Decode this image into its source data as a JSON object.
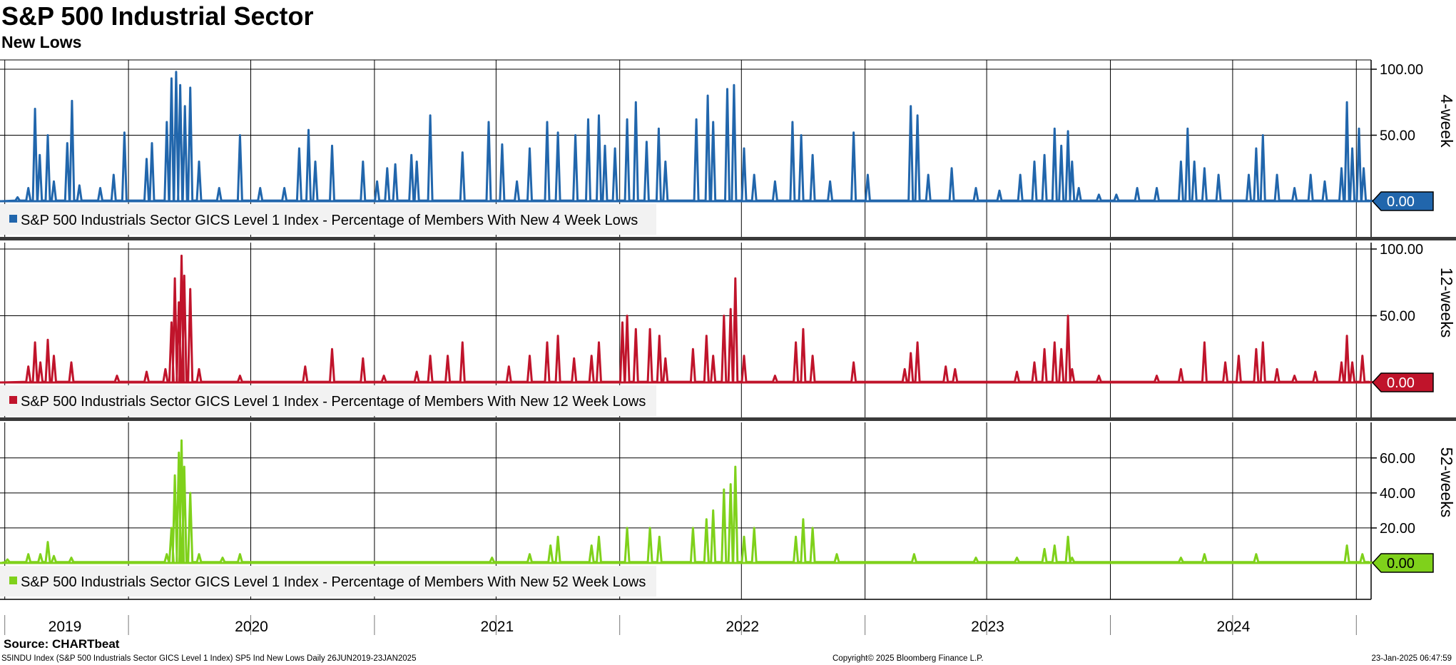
{
  "header": {
    "title": "S&P 500 Industrial Sector",
    "subtitle": "New Lows"
  },
  "footer": {
    "source": "Source: CHARTbeat",
    "description": "S5INDU Index (S&P 500 Industrials Sector GICS Level 1 Index) SP5 Ind New Lows  Daily 26JUN2019-23JAN2025",
    "copyright": "Copyright© 2025 Bloomberg Finance L.P.",
    "timestamp": "23-Jan-2025 06:47:59"
  },
  "chart_data": {
    "type": "line",
    "x_start": "2019-06-26",
    "x_end": "2025-01-23",
    "x_tick_labels": [
      "2019",
      "2020",
      "2021",
      "2022",
      "2023",
      "2024"
    ],
    "panels": [
      {
        "key": "4w",
        "side_label": "4-week",
        "legend": "S&P 500 Industrials Sector GICS Level 1 Index - Percentage of Members With New 4 Week Lows",
        "color": "#2166ac",
        "ylim": [
          0,
          100
        ],
        "yticks": [
          0,
          50,
          100
        ],
        "ytick_labels": [
          "0.00",
          "50.00",
          "100.00"
        ],
        "last_value": "0.00",
        "peaks": [
          [
            "2019-07-20",
            3
          ],
          [
            "2019-08-05",
            10
          ],
          [
            "2019-08-15",
            70
          ],
          [
            "2019-08-22",
            35
          ],
          [
            "2019-09-03",
            50
          ],
          [
            "2019-09-12",
            15
          ],
          [
            "2019-10-02",
            44
          ],
          [
            "2019-10-09",
            76
          ],
          [
            "2019-10-20",
            12
          ],
          [
            "2019-11-20",
            10
          ],
          [
            "2019-12-10",
            20
          ],
          [
            "2019-12-26",
            52
          ],
          [
            "2020-01-28",
            32
          ],
          [
            "2020-02-05",
            44
          ],
          [
            "2020-02-27",
            60
          ],
          [
            "2020-03-05",
            93
          ],
          [
            "2020-03-12",
            98
          ],
          [
            "2020-03-18",
            88
          ],
          [
            "2020-03-25",
            72
          ],
          [
            "2020-04-02",
            86
          ],
          [
            "2020-04-15",
            30
          ],
          [
            "2020-05-15",
            10
          ],
          [
            "2020-06-15",
            50
          ],
          [
            "2020-07-15",
            10
          ],
          [
            "2020-08-20",
            10
          ],
          [
            "2020-09-11",
            40
          ],
          [
            "2020-09-25",
            54
          ],
          [
            "2020-10-05",
            30
          ],
          [
            "2020-10-30",
            42
          ],
          [
            "2020-12-15",
            30
          ],
          [
            "2021-01-05",
            15
          ],
          [
            "2021-01-20",
            25
          ],
          [
            "2021-02-01",
            28
          ],
          [
            "2021-02-25",
            35
          ],
          [
            "2021-03-05",
            30
          ],
          [
            "2021-03-25",
            65
          ],
          [
            "2021-05-12",
            37
          ],
          [
            "2021-06-20",
            60
          ],
          [
            "2021-07-10",
            43
          ],
          [
            "2021-08-01",
            15
          ],
          [
            "2021-08-20",
            40
          ],
          [
            "2021-09-15",
            60
          ],
          [
            "2021-10-01",
            52
          ],
          [
            "2021-10-27",
            50
          ],
          [
            "2021-11-15",
            62
          ],
          [
            "2021-12-01",
            65
          ],
          [
            "2021-12-10",
            42
          ],
          [
            "2021-12-25",
            40
          ],
          [
            "2022-01-12",
            62
          ],
          [
            "2022-01-25",
            75
          ],
          [
            "2022-02-10",
            45
          ],
          [
            "2022-02-28",
            55
          ],
          [
            "2022-03-10",
            30
          ],
          [
            "2022-04-25",
            62
          ],
          [
            "2022-05-12",
            80
          ],
          [
            "2022-05-20",
            60
          ],
          [
            "2022-06-10",
            85
          ],
          [
            "2022-06-20",
            88
          ],
          [
            "2022-07-05",
            40
          ],
          [
            "2022-07-20",
            20
          ],
          [
            "2022-08-20",
            15
          ],
          [
            "2022-09-15",
            60
          ],
          [
            "2022-09-28",
            50
          ],
          [
            "2022-10-15",
            35
          ],
          [
            "2022-11-10",
            15
          ],
          [
            "2022-12-15",
            52
          ],
          [
            "2023-01-05",
            20
          ],
          [
            "2023-03-10",
            72
          ],
          [
            "2023-03-20",
            65
          ],
          [
            "2023-04-05",
            20
          ],
          [
            "2023-05-10",
            25
          ],
          [
            "2023-06-15",
            10
          ],
          [
            "2023-07-20",
            8
          ],
          [
            "2023-08-20",
            20
          ],
          [
            "2023-09-10",
            30
          ],
          [
            "2023-09-25",
            35
          ],
          [
            "2023-10-10",
            55
          ],
          [
            "2023-10-20",
            42
          ],
          [
            "2023-10-30",
            53
          ],
          [
            "2023-11-05",
            30
          ],
          [
            "2023-11-15",
            10
          ],
          [
            "2023-12-15",
            5
          ],
          [
            "2024-01-10",
            5
          ],
          [
            "2024-02-10",
            10
          ],
          [
            "2024-03-10",
            10
          ],
          [
            "2024-04-15",
            30
          ],
          [
            "2024-04-25",
            55
          ],
          [
            "2024-05-05",
            30
          ],
          [
            "2024-05-20",
            25
          ],
          [
            "2024-06-10",
            20
          ],
          [
            "2024-07-25",
            20
          ],
          [
            "2024-08-05",
            40
          ],
          [
            "2024-08-15",
            50
          ],
          [
            "2024-09-05",
            20
          ],
          [
            "2024-10-01",
            10
          ],
          [
            "2024-10-25",
            20
          ],
          [
            "2024-11-15",
            15
          ],
          [
            "2024-12-10",
            25
          ],
          [
            "2024-12-18",
            75
          ],
          [
            "2024-12-26",
            40
          ],
          [
            "2025-01-05",
            55
          ],
          [
            "2025-01-12",
            25
          ],
          [
            "2025-01-23",
            0
          ]
        ]
      },
      {
        "key": "12w",
        "side_label": "12-weeks",
        "legend": "S&P 500 Industrials Sector GICS Level 1 Index - Percentage of Members With New 12 Week Lows",
        "color": "#c0142b",
        "ylim": [
          0,
          100
        ],
        "yticks": [
          0,
          50,
          100
        ],
        "ytick_labels": [
          "0.00",
          "50.00",
          "100.00"
        ],
        "last_value": "0.00",
        "peaks": [
          [
            "2019-08-05",
            12
          ],
          [
            "2019-08-15",
            30
          ],
          [
            "2019-08-23",
            15
          ],
          [
            "2019-09-03",
            32
          ],
          [
            "2019-09-12",
            20
          ],
          [
            "2019-10-08",
            15
          ],
          [
            "2019-12-15",
            5
          ],
          [
            "2020-01-28",
            8
          ],
          [
            "2020-02-25",
            10
          ],
          [
            "2020-03-05",
            45
          ],
          [
            "2020-03-10",
            78
          ],
          [
            "2020-03-16",
            60
          ],
          [
            "2020-03-20",
            95
          ],
          [
            "2020-03-24",
            80
          ],
          [
            "2020-04-02",
            70
          ],
          [
            "2020-04-15",
            10
          ],
          [
            "2020-06-15",
            5
          ],
          [
            "2020-09-20",
            12
          ],
          [
            "2020-10-30",
            25
          ],
          [
            "2020-12-15",
            18
          ],
          [
            "2021-01-15",
            5
          ],
          [
            "2021-03-05",
            8
          ],
          [
            "2021-03-25",
            20
          ],
          [
            "2021-04-20",
            20
          ],
          [
            "2021-05-12",
            30
          ],
          [
            "2021-07-20",
            12
          ],
          [
            "2021-08-20",
            20
          ],
          [
            "2021-09-15",
            30
          ],
          [
            "2021-10-01",
            35
          ],
          [
            "2021-10-25",
            18
          ],
          [
            "2021-11-20",
            20
          ],
          [
            "2021-12-01",
            30
          ],
          [
            "2022-01-05",
            45
          ],
          [
            "2022-01-12",
            50
          ],
          [
            "2022-01-25",
            40
          ],
          [
            "2022-02-15",
            40
          ],
          [
            "2022-03-01",
            35
          ],
          [
            "2022-03-10",
            18
          ],
          [
            "2022-04-20",
            25
          ],
          [
            "2022-05-10",
            35
          ],
          [
            "2022-05-20",
            20
          ],
          [
            "2022-06-05",
            50
          ],
          [
            "2022-06-15",
            55
          ],
          [
            "2022-06-22",
            78
          ],
          [
            "2022-07-05",
            20
          ],
          [
            "2022-08-20",
            5
          ],
          [
            "2022-09-20",
            30
          ],
          [
            "2022-10-01",
            40
          ],
          [
            "2022-10-15",
            20
          ],
          [
            "2022-12-15",
            15
          ],
          [
            "2023-03-01",
            10
          ],
          [
            "2023-03-10",
            22
          ],
          [
            "2023-03-20",
            30
          ],
          [
            "2023-05-01",
            12
          ],
          [
            "2023-05-15",
            10
          ],
          [
            "2023-08-15",
            8
          ],
          [
            "2023-09-10",
            15
          ],
          [
            "2023-09-25",
            25
          ],
          [
            "2023-10-10",
            30
          ],
          [
            "2023-10-20",
            25
          ],
          [
            "2023-10-30",
            50
          ],
          [
            "2023-11-05",
            10
          ],
          [
            "2023-12-15",
            5
          ],
          [
            "2024-03-10",
            5
          ],
          [
            "2024-04-15",
            10
          ],
          [
            "2024-05-20",
            30
          ],
          [
            "2024-06-20",
            15
          ],
          [
            "2024-07-10",
            20
          ],
          [
            "2024-08-05",
            25
          ],
          [
            "2024-08-15",
            30
          ],
          [
            "2024-09-05",
            10
          ],
          [
            "2024-10-01",
            5
          ],
          [
            "2024-11-01",
            8
          ],
          [
            "2024-12-10",
            15
          ],
          [
            "2024-12-18",
            35
          ],
          [
            "2024-12-26",
            15
          ],
          [
            "2025-01-10",
            20
          ],
          [
            "2025-01-23",
            0
          ]
        ]
      },
      {
        "key": "52w",
        "side_label": "52-weeks",
        "legend": "S&P 500 Industrials Sector GICS Level 1 Index - Percentage of Members With New 52 Week Lows",
        "color": "#7fd11b",
        "ylim": [
          0,
          75
        ],
        "yticks": [
          0,
          20,
          40,
          60
        ],
        "ytick_labels": [
          "0.00",
          "20.00",
          "40.00",
          "60.00"
        ],
        "last_value": "0.00",
        "peaks": [
          [
            "2019-07-05",
            2
          ],
          [
            "2019-08-05",
            5
          ],
          [
            "2019-08-23",
            5
          ],
          [
            "2019-09-03",
            12
          ],
          [
            "2019-09-12",
            4
          ],
          [
            "2019-10-08",
            3
          ],
          [
            "2020-02-27",
            5
          ],
          [
            "2020-03-05",
            20
          ],
          [
            "2020-03-10",
            50
          ],
          [
            "2020-03-16",
            63
          ],
          [
            "2020-03-20",
            70
          ],
          [
            "2020-03-24",
            55
          ],
          [
            "2020-04-02",
            40
          ],
          [
            "2020-04-15",
            5
          ],
          [
            "2020-05-20",
            3
          ],
          [
            "2020-06-15",
            5
          ],
          [
            "2021-06-25",
            3
          ],
          [
            "2021-08-20",
            5
          ],
          [
            "2021-09-20",
            10
          ],
          [
            "2021-10-01",
            15
          ],
          [
            "2021-11-20",
            10
          ],
          [
            "2021-12-01",
            15
          ],
          [
            "2022-01-12",
            20
          ],
          [
            "2022-02-15",
            20
          ],
          [
            "2022-03-01",
            15
          ],
          [
            "2022-04-20",
            20
          ],
          [
            "2022-05-10",
            25
          ],
          [
            "2022-05-20",
            30
          ],
          [
            "2022-06-05",
            42
          ],
          [
            "2022-06-15",
            45
          ],
          [
            "2022-06-22",
            55
          ],
          [
            "2022-07-05",
            15
          ],
          [
            "2022-07-20",
            20
          ],
          [
            "2022-09-20",
            15
          ],
          [
            "2022-10-01",
            25
          ],
          [
            "2022-10-15",
            20
          ],
          [
            "2022-11-20",
            5
          ],
          [
            "2023-03-15",
            5
          ],
          [
            "2023-06-15",
            3
          ],
          [
            "2023-08-15",
            3
          ],
          [
            "2023-09-25",
            8
          ],
          [
            "2023-10-10",
            10
          ],
          [
            "2023-10-30",
            15
          ],
          [
            "2023-11-05",
            3
          ],
          [
            "2024-04-15",
            3
          ],
          [
            "2024-05-20",
            5
          ],
          [
            "2024-08-05",
            5
          ],
          [
            "2024-12-18",
            10
          ],
          [
            "2025-01-10",
            5
          ],
          [
            "2025-01-23",
            0
          ]
        ]
      }
    ]
  }
}
